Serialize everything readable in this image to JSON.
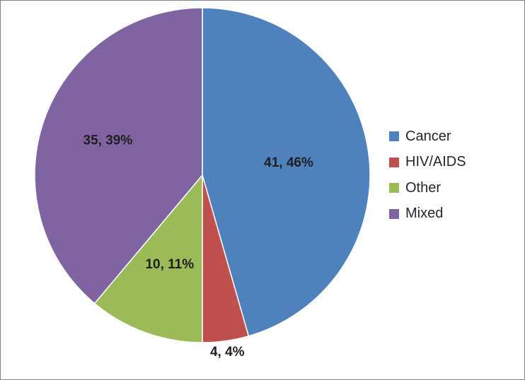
{
  "chart_data": {
    "type": "pie",
    "title": "",
    "categories": [
      "Cancer",
      "HIV/AIDS",
      "Other",
      "Mixed"
    ],
    "values": [
      41,
      4,
      10,
      35
    ],
    "percentages": [
      46,
      4,
      11,
      39
    ],
    "data_labels": [
      "41, 46%",
      "4, 4%",
      "10, 11%",
      "35, 39%"
    ],
    "colors": [
      "#4f81bd",
      "#c0504d",
      "#9bbb59",
      "#8064a2"
    ],
    "start_angle": "12 o'clock",
    "direction": "clockwise",
    "legend": {
      "placement": "right",
      "entries": [
        "Cancer",
        "HIV/AIDS",
        "Other",
        "Mixed"
      ]
    }
  }
}
